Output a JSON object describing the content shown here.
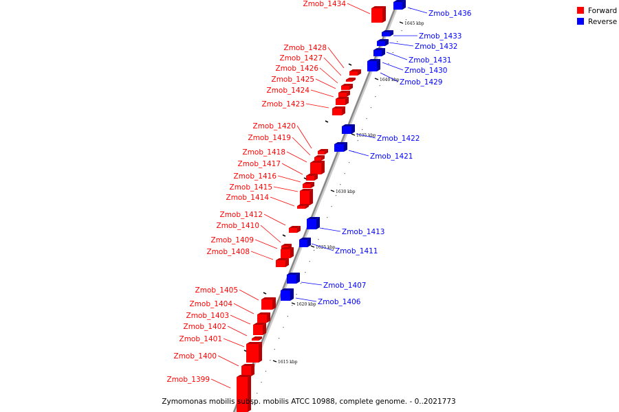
{
  "caption": "Zymomonas mobilis subsp. mobilis ATCC 10988, complete genome. - 0..2021773",
  "legend": [
    {
      "label": "Forward",
      "color": "#ff0000"
    },
    {
      "label": "Reverse",
      "color": "#0000ff"
    }
  ],
  "colors": {
    "forward": "#ff0000",
    "reverse": "#0000ff",
    "axis": "#888888"
  },
  "ruler_labels": [
    "1645 kbp",
    "1640 kbp",
    "1635 kbp",
    "1630 kbp",
    "1625 kbp",
    "1620 kbp",
    "1615 kbp"
  ],
  "genes": [
    {
      "name": "Zmob_1436",
      "strand": "reverse"
    },
    {
      "name": "Zmob_1434",
      "strand": "forward"
    },
    {
      "name": "Zmob_1433",
      "strand": "reverse"
    },
    {
      "name": "Zmob_1432",
      "strand": "reverse"
    },
    {
      "name": "Zmob_1431",
      "strand": "reverse"
    },
    {
      "name": "Zmob_1430",
      "strand": "reverse"
    },
    {
      "name": "Zmob_1429",
      "strand": "reverse"
    },
    {
      "name": "Zmob_1428",
      "strand": "forward"
    },
    {
      "name": "Zmob_1427",
      "strand": "forward"
    },
    {
      "name": "Zmob_1426",
      "strand": "forward"
    },
    {
      "name": "Zmob_1425",
      "strand": "forward"
    },
    {
      "name": "Zmob_1424",
      "strand": "forward"
    },
    {
      "name": "Zmob_1423",
      "strand": "forward"
    },
    {
      "name": "Zmob_1422",
      "strand": "reverse"
    },
    {
      "name": "Zmob_1421",
      "strand": "reverse"
    },
    {
      "name": "Zmob_1420",
      "strand": "forward"
    },
    {
      "name": "Zmob_1419",
      "strand": "forward"
    },
    {
      "name": "Zmob_1418",
      "strand": "forward"
    },
    {
      "name": "Zmob_1417",
      "strand": "forward"
    },
    {
      "name": "Zmob_1416",
      "strand": "forward"
    },
    {
      "name": "Zmob_1415",
      "strand": "forward"
    },
    {
      "name": "Zmob_1414",
      "strand": "forward"
    },
    {
      "name": "Zmob_1413",
      "strand": "reverse"
    },
    {
      "name": "Zmob_1412",
      "strand": "forward"
    },
    {
      "name": "Zmob_1411",
      "strand": "reverse"
    },
    {
      "name": "Zmob_1410",
      "strand": "forward"
    },
    {
      "name": "Zmob_1409",
      "strand": "forward"
    },
    {
      "name": "Zmob_1408",
      "strand": "forward"
    },
    {
      "name": "Zmob_1407",
      "strand": "reverse"
    },
    {
      "name": "Zmob_1406",
      "strand": "reverse"
    },
    {
      "name": "Zmob_1405",
      "strand": "forward"
    },
    {
      "name": "Zmob_1404",
      "strand": "forward"
    },
    {
      "name": "Zmob_1403",
      "strand": "forward"
    },
    {
      "name": "Zmob_1402",
      "strand": "forward"
    },
    {
      "name": "Zmob_1401",
      "strand": "forward"
    },
    {
      "name": "Zmob_1400",
      "strand": "forward"
    },
    {
      "name": "Zmob_1399",
      "strand": "forward"
    }
  ]
}
